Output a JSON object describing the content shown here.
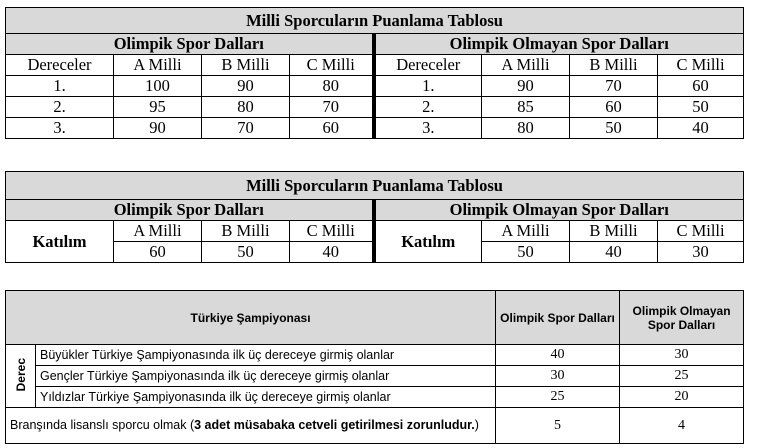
{
  "table1": {
    "title": "Milli Sporcuların Puanlama Tablosu",
    "left_header": "Olimpik Spor Dalları",
    "right_header": "Olimpik Olmayan Spor Dalları",
    "columns": [
      "Dereceler",
      "A Milli",
      "B Milli",
      "C Milli"
    ],
    "rows": [
      {
        "rank": "1.",
        "olimpik": [
          "100",
          "90",
          "80"
        ],
        "olmayan": [
          "90",
          "70",
          "60"
        ]
      },
      {
        "rank": "2.",
        "olimpik": [
          "95",
          "80",
          "70"
        ],
        "olmayan": [
          "85",
          "60",
          "50"
        ]
      },
      {
        "rank": "3.",
        "olimpik": [
          "90",
          "70",
          "60"
        ],
        "olmayan": [
          "80",
          "50",
          "40"
        ]
      }
    ]
  },
  "table2": {
    "title": "Milli Sporcuların Puanlama Tablosu",
    "left_header": "Olimpik Spor Dalları",
    "right_header": "Olimpik Olmayan Spor Dalları",
    "row_label": "Katılım",
    "columns": [
      "A Milli",
      "B Milli",
      "C Milli"
    ],
    "olimpik": [
      "60",
      "50",
      "40"
    ],
    "olmayan": [
      "50",
      "40",
      "30"
    ]
  },
  "table3": {
    "header_main": "Türkiye Şampiyonası",
    "header_col1": "Olimpik Spor Dalları",
    "header_col2": "Olimpik Olmayan Spor Dalları",
    "side_label": "Derec",
    "rows": [
      {
        "label": "Büyükler Türkiye Şampiyonasında ilk üç dereceye girmiş olanlar",
        "olimpik": "40",
        "olmayan": "30"
      },
      {
        "label": "Gençler Türkiye Şampiyonasında ilk üç dereceye girmiş olanlar",
        "olimpik": "30",
        "olmayan": "25"
      },
      {
        "label": "Yıldızlar Türkiye Şampiyonasında ilk üç dereceye girmiş olanlar",
        "olimpik": "25",
        "olmayan": "20"
      }
    ],
    "last_row": {
      "label_plain": "Branşında lisanslı sporcu olmak (",
      "label_bold": "3 adet müsabaka cetveli getirilmesi zorunludur.",
      "label_end": ")",
      "olimpik": "5",
      "olmayan": "4"
    }
  }
}
